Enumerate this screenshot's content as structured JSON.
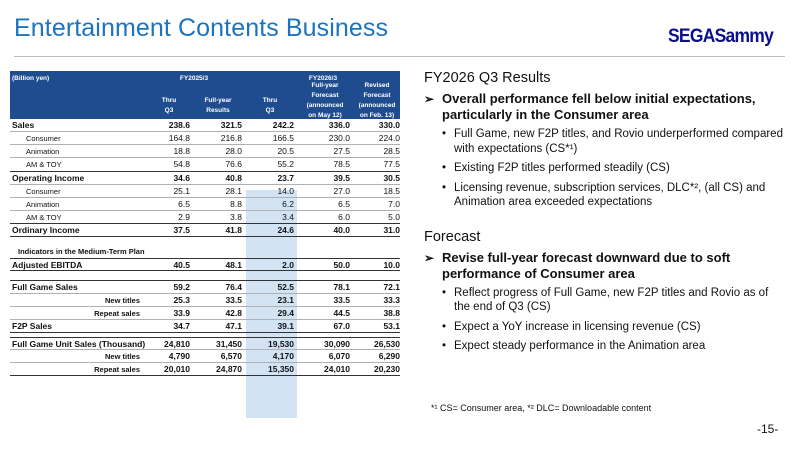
{
  "page": {
    "title": "Entertainment Contents Business",
    "logo": "SEGASammy",
    "page_number": "-15-",
    "footnote": "*¹ CS= Consumer area, *² DLC= Downloadable content"
  },
  "table": {
    "unit": "(Billion yen)",
    "group1": "FY2025/3",
    "group2": "FY2026/3",
    "columns": [
      [
        "Thru",
        "Q3"
      ],
      [
        "Full-year",
        "Results"
      ],
      [
        "Thru",
        "Q3"
      ],
      [
        "Full-year",
        "Forecast",
        "(announced",
        "on May 12)"
      ],
      [
        "Revised",
        "Forecast",
        "(announced",
        "on Feb. 13)"
      ]
    ],
    "rows": [
      {
        "label": "Sales",
        "values": [
          "238.6",
          "321.5",
          "242.2",
          "336.0",
          "330.0"
        ]
      },
      {
        "label": "Consumer",
        "values": [
          "164.8",
          "216.8",
          "166.5",
          "230.0",
          "224.0"
        ]
      },
      {
        "label": "Animation",
        "values": [
          "18.8",
          "28.0",
          "20.5",
          "27.5",
          "28.5"
        ]
      },
      {
        "label": "AM & TOY",
        "values": [
          "54.8",
          "76.6",
          "55.2",
          "78.5",
          "77.5"
        ]
      },
      {
        "label": "Operating Income",
        "values": [
          "34.6",
          "40.8",
          "23.7",
          "39.5",
          "30.5"
        ]
      },
      {
        "label": "Consumer",
        "values": [
          "25.1",
          "28.1",
          "14.0",
          "27.0",
          "18.5"
        ]
      },
      {
        "label": "Animation",
        "values": [
          "6.5",
          "8.8",
          "6.2",
          "6.5",
          "7.0"
        ]
      },
      {
        "label": "AM & TOY",
        "values": [
          "2.9",
          "3.8",
          "3.4",
          "6.0",
          "5.0"
        ]
      },
      {
        "label": "Ordinary Income",
        "values": [
          "37.5",
          "41.8",
          "24.6",
          "40.0",
          "31.0"
        ]
      }
    ],
    "section_title": "Indicators in the Medium-Term Plan",
    "ebitda": {
      "label": "Adjusted EBITDA",
      "values": [
        "40.5",
        "48.1",
        "2.0",
        "50.0",
        "10.0"
      ]
    },
    "full_game": [
      {
        "label": "Full Game Sales",
        "values": [
          "59.2",
          "76.4",
          "52.5",
          "78.1",
          "72.1"
        ]
      },
      {
        "label": "New titles",
        "values": [
          "25.3",
          "33.5",
          "23.1",
          "33.5",
          "33.3"
        ]
      },
      {
        "label": "Repeat sales",
        "values": [
          "33.9",
          "42.8",
          "29.4",
          "44.5",
          "38.8"
        ]
      },
      {
        "label": "F2P Sales",
        "values": [
          "34.7",
          "47.1",
          "39.1",
          "67.0",
          "53.1"
        ]
      }
    ],
    "unit_sales": [
      {
        "label": "Full Game Unit Sales (Thousand)",
        "values": [
          "24,810",
          "31,450",
          "19,530",
          "30,090",
          "26,530"
        ]
      },
      {
        "label": "New titles",
        "values": [
          "4,790",
          "6,570",
          "4,170",
          "6,070",
          "6,290"
        ]
      },
      {
        "label": "Repeat sales",
        "values": [
          "20,010",
          "24,870",
          "15,350",
          "24,010",
          "20,230"
        ]
      }
    ]
  },
  "results": {
    "heading": "FY2026 Q3 Results",
    "bullet": "Overall performance fell below initial expectations, particularly in the Consumer area",
    "subs": [
      "Full Game, new F2P titles, and Rovio underperformed compared with expectations (CS*¹)",
      "Existing F2P titles performed steadily (CS)",
      "Licensing revenue, subscription services, DLC*², (all CS) and Animation area exceeded expectations"
    ]
  },
  "forecast": {
    "heading": "Forecast",
    "bullet": "Revise full-year forecast downward due to soft performance of Consumer area",
    "subs": [
      "Reflect progress of Full Game, new F2P titles and Rovio as of the end of Q3 (CS)",
      "Expect a YoY increase in licensing revenue (CS)",
      "Expect steady performance in the Animation area"
    ]
  }
}
